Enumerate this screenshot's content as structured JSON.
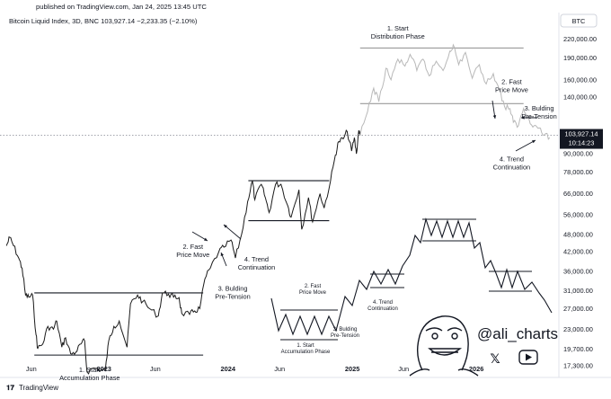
{
  "header": {
    "published": "published on TradingView.com, Jan 24, 2025 13:45 UTC",
    "symbol_line": "Bitcoin Liquid Index, 3D, BNC  103,927.14  −2,233.35 (−2.10%)",
    "currency": "BTC"
  },
  "footer": {
    "brand": "TradingView"
  },
  "price_tag": {
    "price": "103,927.14",
    "countdown": "10:14:23"
  },
  "watermark": {
    "handle": "@ali_charts"
  },
  "colors": {
    "price_line": "#1a1a1a",
    "future_line": "#b8b8b8",
    "tag_bg": "#131722"
  },
  "chart_data": {
    "type": "line",
    "title": "Bitcoin Liquid Index",
    "timeframe": "3D",
    "scale": "log",
    "last_price": 103927.14,
    "change": -2233.35,
    "change_pct": -2.1,
    "x_ticks": [
      "Jun",
      "2023",
      "Jun",
      "2024",
      "Jun",
      "2025",
      "Jun",
      "2026"
    ],
    "y_ticks": [
      220000,
      190000,
      160000,
      140000,
      90000,
      78000,
      66000,
      56000,
      48000,
      42000,
      36000,
      31000,
      27000,
      23000,
      19700,
      17300
    ],
    "y_tick_labels": [
      "220,000.00",
      "190,000.00",
      "160,000.00",
      "140,000.00",
      "90,000.00",
      "78,000.00",
      "66,000.00",
      "56,000.00",
      "48,000.00",
      "42,000.00",
      "36,000.00",
      "31,000.00",
      "27,000.00",
      "23,000.00",
      "19,700.00",
      "17,300.00"
    ],
    "ylim": [
      15800,
      270000
    ],
    "xlim": [
      "2022-03-01",
      "2026-09-01"
    ],
    "series": [
      {
        "role": "historical price",
        "points": [
          [
            "2022-03-20",
            44000
          ],
          [
            "2022-03-30",
            47000
          ],
          [
            "2022-04-10",
            44000
          ],
          [
            "2022-04-25",
            40000
          ],
          [
            "2022-05-05",
            37000
          ],
          [
            "2022-05-15",
            30000
          ],
          [
            "2022-05-25",
            29500
          ],
          [
            "2022-06-05",
            30000
          ],
          [
            "2022-06-15",
            22000
          ],
          [
            "2022-06-20",
            19800
          ],
          [
            "2022-07-05",
            20500
          ],
          [
            "2022-07-20",
            23500
          ],
          [
            "2022-08-05",
            23000
          ],
          [
            "2022-08-15",
            24500
          ],
          [
            "2022-08-30",
            20000
          ],
          [
            "2022-09-10",
            21500
          ],
          [
            "2022-09-25",
            19000
          ],
          [
            "2022-10-10",
            19200
          ],
          [
            "2022-10-25",
            20500
          ],
          [
            "2022-11-05",
            21000
          ],
          [
            "2022-11-12",
            16500
          ],
          [
            "2022-12-01",
            17000
          ],
          [
            "2022-12-25",
            16800
          ],
          [
            "2023-01-05",
            16700
          ],
          [
            "2023-01-15",
            21000
          ],
          [
            "2023-01-30",
            23500
          ],
          [
            "2023-02-15",
            24500
          ],
          [
            "2023-03-10",
            20000
          ],
          [
            "2023-03-20",
            28000
          ],
          [
            "2023-04-10",
            30000
          ],
          [
            "2023-04-25",
            28500
          ],
          [
            "2023-05-15",
            27000
          ],
          [
            "2023-06-10",
            25500
          ],
          [
            "2023-06-22",
            30500
          ],
          [
            "2023-07-10",
            30200
          ],
          [
            "2023-07-25",
            29500
          ],
          [
            "2023-08-10",
            29400
          ],
          [
            "2023-08-18",
            26000
          ],
          [
            "2023-09-10",
            25800
          ],
          [
            "2023-09-25",
            26500
          ],
          [
            "2023-10-10",
            27000
          ],
          [
            "2023-10-25",
            34000
          ],
          [
            "2023-11-10",
            37000
          ],
          [
            "2023-12-05",
            42000
          ],
          [
            "2023-12-20",
            43500
          ],
          [
            "2024-01-10",
            46000
          ],
          [
            "2024-01-23",
            40000
          ],
          [
            "2024-02-10",
            48000
          ],
          [
            "2024-02-28",
            62000
          ],
          [
            "2024-03-13",
            73000
          ],
          [
            "2024-03-20",
            63000
          ],
          [
            "2024-04-08",
            71000
          ],
          [
            "2024-04-20",
            64000
          ],
          [
            "2024-05-01",
            57000
          ],
          [
            "2024-05-20",
            71000
          ],
          [
            "2024-06-05",
            71000
          ],
          [
            "2024-06-25",
            60000
          ],
          [
            "2024-07-05",
            55000
          ],
          [
            "2024-07-28",
            68000
          ],
          [
            "2024-08-05",
            50000
          ],
          [
            "2024-08-25",
            64000
          ],
          [
            "2024-09-06",
            53000
          ],
          [
            "2024-09-28",
            66000
          ],
          [
            "2024-10-10",
            59000
          ],
          [
            "2024-10-29",
            73000
          ],
          [
            "2024-11-12",
            89000
          ],
          [
            "2024-11-22",
            99000
          ],
          [
            "2024-12-05",
            101000
          ],
          [
            "2024-12-17",
            107000
          ],
          [
            "2024-12-30",
            92000
          ],
          [
            "2025-01-07",
            102000
          ],
          [
            "2025-01-13",
            90000
          ],
          [
            "2025-01-20",
            108000
          ],
          [
            "2025-01-24",
            103927
          ]
        ]
      },
      {
        "role": "projected path",
        "points": [
          [
            "2025-01-24",
            103927
          ],
          [
            "2025-02-15",
            125000
          ],
          [
            "2025-03-05",
            150000
          ],
          [
            "2025-03-20",
            135000
          ],
          [
            "2025-04-10",
            175000
          ],
          [
            "2025-04-25",
            160000
          ],
          [
            "2025-05-15",
            188000
          ],
          [
            "2025-06-05",
            178000
          ],
          [
            "2025-06-20",
            195000
          ],
          [
            "2025-07-10",
            172000
          ],
          [
            "2025-07-28",
            188000
          ],
          [
            "2025-08-15",
            165000
          ],
          [
            "2025-09-05",
            185000
          ],
          [
            "2025-09-25",
            172000
          ],
          [
            "2025-10-15",
            200000
          ],
          [
            "2025-10-25",
            210000
          ],
          [
            "2025-11-10",
            180000
          ],
          [
            "2025-11-30",
            198000
          ],
          [
            "2025-12-20",
            162000
          ],
          [
            "2026-01-10",
            180000
          ],
          [
            "2026-01-30",
            155000
          ],
          [
            "2026-02-20",
            168000
          ],
          [
            "2026-03-10",
            148000
          ],
          [
            "2026-03-25",
            130000
          ],
          [
            "2026-04-10",
            128000
          ],
          [
            "2026-04-20",
            115000
          ],
          [
            "2026-05-05",
            112000
          ],
          [
            "2026-05-20",
            128000
          ],
          [
            "2026-06-05",
            118000
          ],
          [
            "2026-06-20",
            112000
          ],
          [
            "2026-07-05",
            110000
          ],
          [
            "2026-07-20",
            104000
          ],
          [
            "2026-08-05",
            102000
          ]
        ]
      }
    ],
    "ranges": [
      {
        "from": "2022-06-10",
        "to": "2023-10-20",
        "top": 30500,
        "bottom": 18800
      },
      {
        "from": "2024-03-01",
        "to": "2024-10-25",
        "top": 73000,
        "bottom": 53500
      },
      {
        "from": "2025-01-24",
        "to": "2026-05-20",
        "top": 205000,
        "bottom": 133000
      }
    ],
    "annotations": [
      {
        "lines": [
          "1. Start",
          "Accumulation Phase"
        ],
        "date": "2022-11-20",
        "price": 16500
      },
      {
        "lines": [
          "2. Fast",
          "Price Move"
        ],
        "date": "2023-09-20",
        "price": 43000
      },
      {
        "lines": [
          "3. Bulding",
          "Pre-Tension"
        ],
        "date": "2024-01-15",
        "price": 31000
      },
      {
        "lines": [
          "4. Trend",
          "Continuation"
        ],
        "date": "2024-03-25",
        "price": 39000
      },
      {
        "lines": [
          "1. Start",
          "Distribution Phase"
        ],
        "date": "2025-05-15",
        "price": 235000
      },
      {
        "lines": [
          "2. Fast",
          "Price Move"
        ],
        "date": "2026-04-15",
        "price": 155000
      },
      {
        "lines": [
          "3. Bulding",
          "Pre-Tension"
        ],
        "date": "2026-07-05",
        "price": 126000
      },
      {
        "lines": [
          "4. Trend",
          "Continuation"
        ],
        "date": "2026-04-15",
        "price": 85000
      }
    ],
    "inset_annotations": [
      [
        "1. Start",
        "Accumulation Phase"
      ],
      [
        "2. Fast",
        "Price Move"
      ],
      [
        "3. Bulding",
        "Pre-Tension"
      ],
      [
        "4. Trend",
        "Continuation"
      ]
    ]
  }
}
